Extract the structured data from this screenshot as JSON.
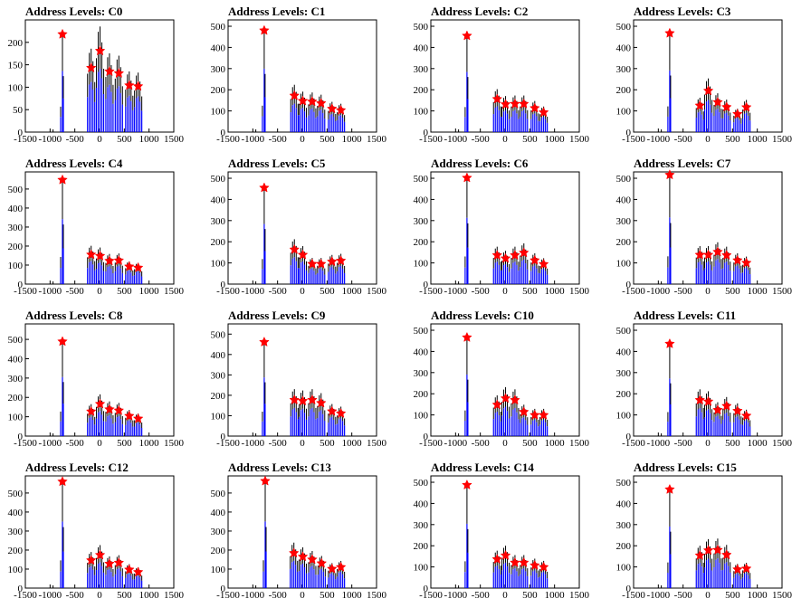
{
  "colors": {
    "histogram": "#0000ff",
    "spike": "#000000",
    "marker": "#ff0000",
    "axes": "#000000"
  },
  "chart_data": [
    {
      "type": "bar",
      "title": "Address Levels: C0",
      "xlim": [
        -1500,
        1500
      ],
      "ylim": [
        0,
        250
      ],
      "yticks": [
        0,
        50,
        100,
        150,
        200
      ],
      "xticks": [
        -1500,
        -1000,
        -500,
        0,
        500,
        1000,
        1500
      ],
      "markers": [
        {
          "x": -750,
          "y": 218
        },
        {
          "x": -170,
          "y": 143
        },
        {
          "x": 10,
          "y": 181
        },
        {
          "x": 200,
          "y": 135
        },
        {
          "x": 390,
          "y": 131
        },
        {
          "x": 600,
          "y": 104
        },
        {
          "x": 780,
          "y": 102
        }
      ]
    },
    {
      "type": "bar",
      "title": "Address Levels: C1",
      "xlim": [
        -1500,
        1500
      ],
      "ylim": [
        0,
        530
      ],
      "yticks": [
        0,
        100,
        200,
        300,
        400,
        500
      ],
      "xticks": [
        -1500,
        -1000,
        -500,
        0,
        500,
        1000,
        1500
      ],
      "markers": [
        {
          "x": -770,
          "y": 480
        },
        {
          "x": -160,
          "y": 172
        },
        {
          "x": 10,
          "y": 147
        },
        {
          "x": 200,
          "y": 144
        },
        {
          "x": 380,
          "y": 136
        },
        {
          "x": 600,
          "y": 110
        },
        {
          "x": 780,
          "y": 103
        }
      ]
    },
    {
      "type": "bar",
      "title": "Address Levels: C2",
      "xlim": [
        -1500,
        1500
      ],
      "ylim": [
        0,
        530
      ],
      "yticks": [
        0,
        100,
        200,
        300,
        400,
        500
      ],
      "xticks": [
        -1500,
        -1000,
        -500,
        0,
        500,
        1000,
        1500
      ],
      "markers": [
        {
          "x": -770,
          "y": 455
        },
        {
          "x": -160,
          "y": 156
        },
        {
          "x": 10,
          "y": 131
        },
        {
          "x": 200,
          "y": 133
        },
        {
          "x": 380,
          "y": 133
        },
        {
          "x": 600,
          "y": 113
        },
        {
          "x": 780,
          "y": 93
        }
      ]
    },
    {
      "type": "bar",
      "title": "Address Levels: C3",
      "xlim": [
        -1500,
        1500
      ],
      "ylim": [
        0,
        530
      ],
      "yticks": [
        0,
        100,
        200,
        300,
        400,
        500
      ],
      "xticks": [
        -1500,
        -1000,
        -500,
        0,
        500,
        1000,
        1500
      ],
      "markers": [
        {
          "x": -770,
          "y": 467
        },
        {
          "x": -160,
          "y": 125
        },
        {
          "x": 10,
          "y": 195
        },
        {
          "x": 200,
          "y": 141
        },
        {
          "x": 380,
          "y": 118
        },
        {
          "x": 600,
          "y": 85
        },
        {
          "x": 780,
          "y": 117
        }
      ]
    },
    {
      "type": "bar",
      "title": "Address Levels: C4",
      "xlim": [
        -1500,
        1500
      ],
      "ylim": [
        0,
        590
      ],
      "yticks": [
        0,
        100,
        200,
        300,
        400,
        500
      ],
      "xticks": [
        -1500,
        -1000,
        -500,
        0,
        500,
        1000,
        1500
      ],
      "markers": [
        {
          "x": -750,
          "y": 548
        },
        {
          "x": -170,
          "y": 155
        },
        {
          "x": 10,
          "y": 148
        },
        {
          "x": 200,
          "y": 122
        },
        {
          "x": 390,
          "y": 124
        },
        {
          "x": 600,
          "y": 92
        },
        {
          "x": 780,
          "y": 86
        }
      ]
    },
    {
      "type": "bar",
      "title": "Address Levels: C5",
      "xlim": [
        -1500,
        1500
      ],
      "ylim": [
        0,
        530
      ],
      "yticks": [
        0,
        100,
        200,
        300,
        400,
        500
      ],
      "xticks": [
        -1500,
        -1000,
        -500,
        0,
        500,
        1000,
        1500
      ],
      "markers": [
        {
          "x": -770,
          "y": 455
        },
        {
          "x": -160,
          "y": 163
        },
        {
          "x": 10,
          "y": 138
        },
        {
          "x": 200,
          "y": 95
        },
        {
          "x": 380,
          "y": 95
        },
        {
          "x": 600,
          "y": 106
        },
        {
          "x": 780,
          "y": 110
        }
      ]
    },
    {
      "type": "bar",
      "title": "Address Levels: C6",
      "xlim": [
        -1500,
        1500
      ],
      "ylim": [
        0,
        530
      ],
      "yticks": [
        0,
        100,
        200,
        300,
        400,
        500
      ],
      "xticks": [
        -1500,
        -1000,
        -500,
        0,
        500,
        1000,
        1500
      ],
      "markers": [
        {
          "x": -770,
          "y": 502
        },
        {
          "x": -160,
          "y": 136
        },
        {
          "x": 10,
          "y": 121
        },
        {
          "x": 200,
          "y": 136
        },
        {
          "x": 380,
          "y": 148
        },
        {
          "x": 600,
          "y": 112
        },
        {
          "x": 780,
          "y": 94
        }
      ]
    },
    {
      "type": "bar",
      "title": "Address Levels: C7",
      "xlim": [
        -1500,
        1500
      ],
      "ylim": [
        0,
        530
      ],
      "yticks": [
        0,
        100,
        200,
        300,
        400,
        500
      ],
      "xticks": [
        -1500,
        -1000,
        -500,
        0,
        500,
        1000,
        1500
      ],
      "markers": [
        {
          "x": -770,
          "y": 516
        },
        {
          "x": -160,
          "y": 138
        },
        {
          "x": 10,
          "y": 138
        },
        {
          "x": 200,
          "y": 152
        },
        {
          "x": 380,
          "y": 136
        },
        {
          "x": 600,
          "y": 112
        },
        {
          "x": 780,
          "y": 100
        }
      ]
    },
    {
      "type": "bar",
      "title": "Address Levels: C8",
      "xlim": [
        -1500,
        1500
      ],
      "ylim": [
        0,
        580
      ],
      "yticks": [
        0,
        100,
        200,
        300,
        400,
        500
      ],
      "xticks": [
        -1500,
        -1000,
        -500,
        0,
        500,
        1000,
        1500
      ],
      "markers": [
        {
          "x": -750,
          "y": 489
        },
        {
          "x": -170,
          "y": 127
        },
        {
          "x": 10,
          "y": 166
        },
        {
          "x": 200,
          "y": 138
        },
        {
          "x": 390,
          "y": 132
        },
        {
          "x": 600,
          "y": 104
        },
        {
          "x": 780,
          "y": 90
        }
      ]
    },
    {
      "type": "bar",
      "title": "Address Levels: C9",
      "xlim": [
        -1500,
        1500
      ],
      "ylim": [
        0,
        550
      ],
      "yticks": [
        0,
        100,
        200,
        300,
        400,
        500
      ],
      "xticks": [
        -1500,
        -1000,
        -500,
        0,
        500,
        1000,
        1500
      ],
      "markers": [
        {
          "x": -770,
          "y": 461
        },
        {
          "x": -160,
          "y": 177
        },
        {
          "x": 10,
          "y": 172
        },
        {
          "x": 200,
          "y": 177
        },
        {
          "x": 380,
          "y": 162
        },
        {
          "x": 600,
          "y": 121
        },
        {
          "x": 780,
          "y": 111
        }
      ]
    },
    {
      "type": "bar",
      "title": "Address Levels: C10",
      "xlim": [
        -1500,
        1500
      ],
      "ylim": [
        0,
        530
      ],
      "yticks": [
        0,
        100,
        200,
        300,
        400,
        500
      ],
      "xticks": [
        -1500,
        -1000,
        -500,
        0,
        500,
        1000,
        1500
      ],
      "markers": [
        {
          "x": -770,
          "y": 466
        },
        {
          "x": -160,
          "y": 148
        },
        {
          "x": 10,
          "y": 178
        },
        {
          "x": 200,
          "y": 170
        },
        {
          "x": 380,
          "y": 114
        },
        {
          "x": 600,
          "y": 99
        },
        {
          "x": 780,
          "y": 99
        }
      ]
    },
    {
      "type": "bar",
      "title": "Address Levels: C11",
      "xlim": [
        -1500,
        1500
      ],
      "ylim": [
        0,
        530
      ],
      "yticks": [
        0,
        100,
        200,
        300,
        400,
        500
      ],
      "xticks": [
        -1500,
        -1000,
        -500,
        0,
        500,
        1000,
        1500
      ],
      "markers": [
        {
          "x": -770,
          "y": 436
        },
        {
          "x": -160,
          "y": 170
        },
        {
          "x": 10,
          "y": 163
        },
        {
          "x": 200,
          "y": 123
        },
        {
          "x": 380,
          "y": 142
        },
        {
          "x": 600,
          "y": 119
        },
        {
          "x": 780,
          "y": 96
        }
      ]
    },
    {
      "type": "bar",
      "title": "Address Levels: C12",
      "xlim": [
        -1500,
        1500
      ],
      "ylim": [
        0,
        590
      ],
      "yticks": [
        0,
        100,
        200,
        300,
        400,
        500
      ],
      "xticks": [
        -1500,
        -1000,
        -500,
        0,
        500,
        1000,
        1500
      ],
      "markers": [
        {
          "x": -750,
          "y": 560
        },
        {
          "x": -170,
          "y": 146
        },
        {
          "x": 10,
          "y": 174
        },
        {
          "x": 200,
          "y": 128
        },
        {
          "x": 390,
          "y": 133
        },
        {
          "x": 600,
          "y": 97
        },
        {
          "x": 780,
          "y": 84
        }
      ]
    },
    {
      "type": "bar",
      "title": "Address Levels: C13",
      "xlim": [
        -1500,
        1500
      ],
      "ylim": [
        0,
        590
      ],
      "yticks": [
        0,
        100,
        200,
        300,
        400,
        500
      ],
      "xticks": [
        -1500,
        -1000,
        -500,
        0,
        500,
        1000,
        1500
      ],
      "markers": [
        {
          "x": -750,
          "y": 563
        },
        {
          "x": -170,
          "y": 184
        },
        {
          "x": 10,
          "y": 165
        },
        {
          "x": 200,
          "y": 150
        },
        {
          "x": 390,
          "y": 130
        },
        {
          "x": 600,
          "y": 101
        },
        {
          "x": 780,
          "y": 110
        }
      ]
    },
    {
      "type": "bar",
      "title": "Address Levels: C14",
      "xlim": [
        -1500,
        1500
      ],
      "ylim": [
        0,
        530
      ],
      "yticks": [
        0,
        100,
        200,
        300,
        400,
        500
      ],
      "xticks": [
        -1500,
        -1000,
        -500,
        0,
        500,
        1000,
        1500
      ],
      "markers": [
        {
          "x": -770,
          "y": 487
        },
        {
          "x": -160,
          "y": 136
        },
        {
          "x": 10,
          "y": 154
        },
        {
          "x": 200,
          "y": 120
        },
        {
          "x": 380,
          "y": 120
        },
        {
          "x": 600,
          "y": 107
        },
        {
          "x": 780,
          "y": 99
        }
      ]
    },
    {
      "type": "bar",
      "title": "Address Levels: C15",
      "xlim": [
        -1500,
        1500
      ],
      "ylim": [
        0,
        530
      ],
      "yticks": [
        0,
        100,
        200,
        300,
        400,
        500
      ],
      "xticks": [
        -1500,
        -1000,
        -500,
        0,
        500,
        1000,
        1500
      ],
      "markers": [
        {
          "x": -770,
          "y": 466
        },
        {
          "x": -160,
          "y": 154
        },
        {
          "x": 10,
          "y": 178
        },
        {
          "x": 200,
          "y": 180
        },
        {
          "x": 380,
          "y": 157
        },
        {
          "x": 600,
          "y": 88
        },
        {
          "x": 780,
          "y": 92
        }
      ]
    }
  ]
}
